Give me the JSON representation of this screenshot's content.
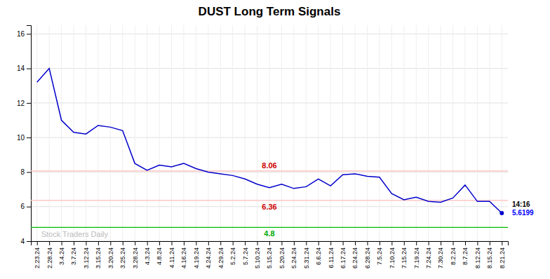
{
  "chart_data": {
    "type": "line",
    "title": "DUST Long Term Signals",
    "categories": [
      "2.23.24",
      "2.28.24",
      "3.4.24",
      "3.7.24",
      "3.12.24",
      "3.15.24",
      "3.20.24",
      "3.25.24",
      "3.28.24",
      "4.3.24",
      "4.8.24",
      "4.11.24",
      "4.16.24",
      "4.19.24",
      "4.24.24",
      "4.29.24",
      "5.2.24",
      "5.7.24",
      "5.10.24",
      "5.15.24",
      "5.20.24",
      "5.24.24",
      "5.31.24",
      "6.6.24",
      "6.11.24",
      "6.17.24",
      "6.24.24",
      "6.28.24",
      "7.5.24",
      "7.10.24",
      "7.15.24",
      "7.19.24",
      "7.24.24",
      "7.30.24",
      "8.2.24",
      "8.7.24",
      "8.12.24",
      "8.15.24",
      "8.21.24"
    ],
    "values": [
      13.2,
      14.0,
      11.0,
      10.3,
      10.2,
      10.7,
      10.6,
      10.4,
      8.5,
      8.1,
      8.4,
      8.3,
      8.5,
      8.2,
      8.0,
      7.9,
      7.8,
      7.6,
      7.3,
      7.1,
      7.3,
      7.05,
      7.15,
      7.6,
      7.2,
      7.85,
      7.9,
      7.75,
      7.7,
      6.75,
      6.4,
      6.55,
      6.3,
      6.25,
      6.5,
      7.25,
      6.3,
      6.3,
      5.62
    ],
    "color": "#0000cc",
    "ylim": [
      4.0,
      16.5
    ],
    "yticks": [
      4,
      6,
      8,
      10,
      12,
      14,
      16
    ],
    "grid": true,
    "hlines": [
      {
        "value": 8.06,
        "label": "8.06",
        "color": "#ffbbbb",
        "label_color": "#cc0000"
      },
      {
        "value": 6.36,
        "label": "6.36",
        "color": "#ffbbbb",
        "label_color": "#cc0000"
      },
      {
        "value": 4.8,
        "label": "4.8",
        "color": "#00bb00",
        "label_color": "#00aa00"
      }
    ],
    "annotations": [
      {
        "label": "14:16"
      },
      {
        "label": "5.6199",
        "value": 5.6199,
        "color": "#0000ff"
      },
      {
        "label": "Stock Traders Daily",
        "color": "#bbbbbb"
      }
    ]
  }
}
